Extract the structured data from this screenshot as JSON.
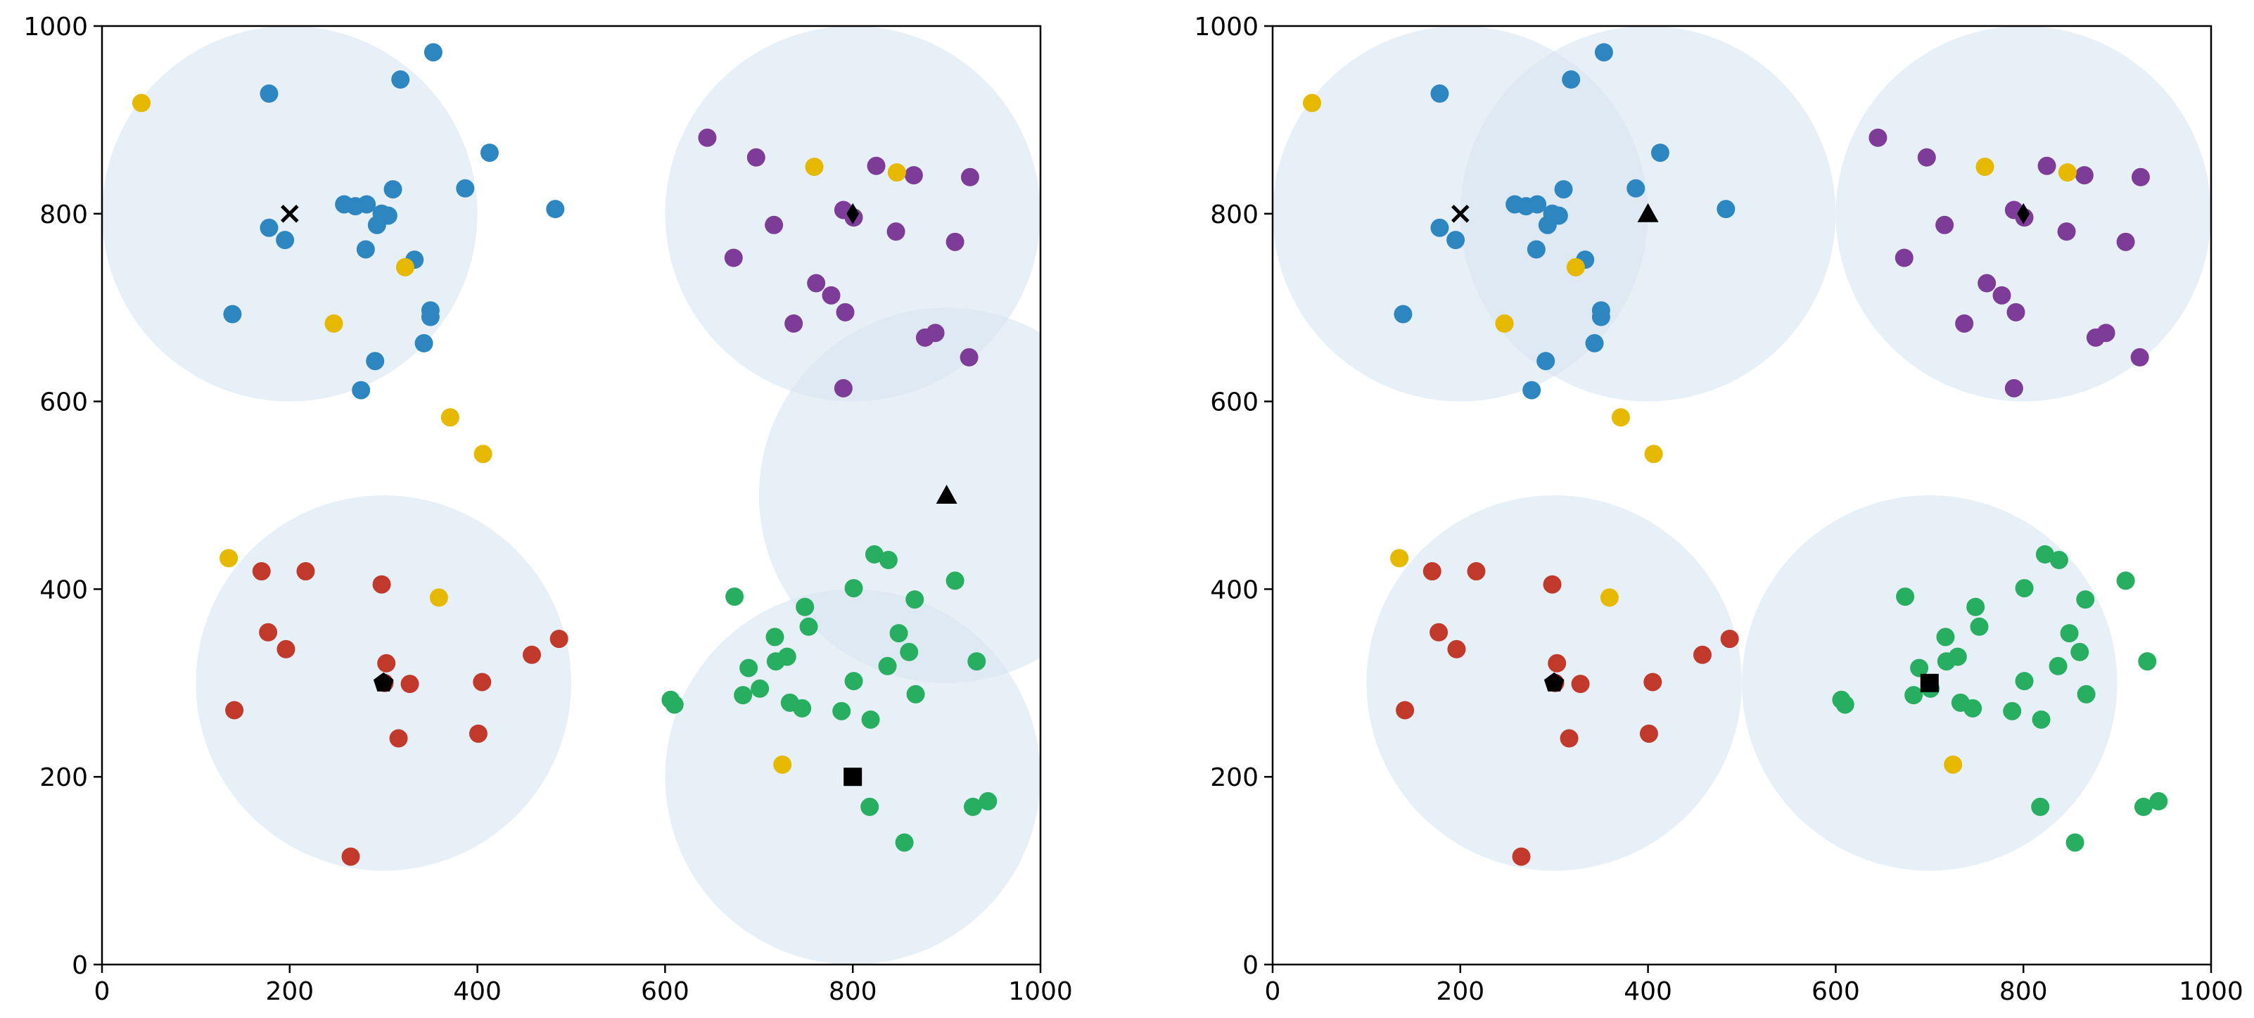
{
  "chart_data": [
    {
      "type": "scatter",
      "title": "",
      "xlabel": "",
      "ylabel": "",
      "xlim": [
        0,
        1000
      ],
      "ylim": [
        0,
        1000
      ],
      "xticks": [
        "0",
        "200",
        "400",
        "600",
        "800",
        "1000"
      ],
      "yticks": [
        "0",
        "200",
        "400",
        "600",
        "800",
        "1000"
      ],
      "grid": false,
      "circle_radius": 200,
      "circles": [
        {
          "cx": 200,
          "cy": 800
        },
        {
          "cx": 800,
          "cy": 800
        },
        {
          "cx": 900,
          "cy": 500
        },
        {
          "cx": 300,
          "cy": 300
        },
        {
          "cx": 800,
          "cy": 200
        }
      ],
      "centers": [
        {
          "shape": "x",
          "x": 200,
          "y": 800
        },
        {
          "shape": "thin-diamond",
          "x": 800,
          "y": 800
        },
        {
          "shape": "triangle",
          "x": 900,
          "y": 500
        },
        {
          "shape": "pentagon",
          "x": 300,
          "y": 300
        },
        {
          "shape": "square",
          "x": 800,
          "y": 200
        }
      ]
    },
    {
      "type": "scatter",
      "title": "",
      "xlabel": "",
      "ylabel": "",
      "xlim": [
        0,
        1000
      ],
      "ylim": [
        0,
        1000
      ],
      "xticks": [
        "0",
        "200",
        "400",
        "600",
        "800",
        "1000"
      ],
      "yticks": [
        "0",
        "200",
        "400",
        "600",
        "800",
        "1000"
      ],
      "grid": false,
      "circle_radius": 200,
      "circles": [
        {
          "cx": 200,
          "cy": 800
        },
        {
          "cx": 400,
          "cy": 800
        },
        {
          "cx": 800,
          "cy": 800
        },
        {
          "cx": 300,
          "cy": 300
        },
        {
          "cx": 700,
          "cy": 300
        }
      ],
      "centers": [
        {
          "shape": "x",
          "x": 200,
          "y": 800
        },
        {
          "shape": "triangle",
          "x": 400,
          "y": 800
        },
        {
          "shape": "thin-diamond",
          "x": 800,
          "y": 800
        },
        {
          "shape": "pentagon",
          "x": 300,
          "y": 300
        },
        {
          "shape": "square",
          "x": 700,
          "y": 300
        }
      ]
    }
  ],
  "colors": {
    "blue": "#2e86c1",
    "purple": "#7d3c98",
    "red": "#c0392b",
    "green": "#27ae60",
    "yellow": "#e6b800",
    "circle_fill": "#d6e4f0",
    "marker": "#000000"
  },
  "points": {
    "blue": [
      [
        178,
        928
      ],
      [
        318,
        943
      ],
      [
        353,
        972
      ],
      [
        413,
        865
      ],
      [
        387,
        827
      ],
      [
        483,
        805
      ],
      [
        310,
        826
      ],
      [
        258,
        810
      ],
      [
        270,
        808
      ],
      [
        282,
        810
      ],
      [
        298,
        800
      ],
      [
        305,
        798
      ],
      [
        293,
        788
      ],
      [
        178,
        785
      ],
      [
        195,
        772
      ],
      [
        281,
        762
      ],
      [
        333,
        751
      ],
      [
        350,
        697
      ],
      [
        350,
        690
      ],
      [
        139,
        693
      ],
      [
        343,
        662
      ],
      [
        291,
        643
      ],
      [
        276,
        612
      ]
    ],
    "purple": [
      [
        645,
        881
      ],
      [
        697,
        860
      ],
      [
        825,
        851
      ],
      [
        865,
        841
      ],
      [
        925,
        839
      ],
      [
        790,
        804
      ],
      [
        801,
        796
      ],
      [
        846,
        781
      ],
      [
        716,
        788
      ],
      [
        909,
        770
      ],
      [
        673,
        753
      ],
      [
        761,
        726
      ],
      [
        777,
        713
      ],
      [
        792,
        695
      ],
      [
        737,
        683
      ],
      [
        877,
        668
      ],
      [
        888,
        673
      ],
      [
        924,
        647
      ],
      [
        790,
        614
      ]
    ],
    "red": [
      [
        170,
        419
      ],
      [
        217,
        419
      ],
      [
        298,
        405
      ],
      [
        177,
        354
      ],
      [
        196,
        336
      ],
      [
        487,
        347
      ],
      [
        458,
        330
      ],
      [
        303,
        321
      ],
      [
        301,
        300
      ],
      [
        328,
        299
      ],
      [
        405,
        301
      ],
      [
        141,
        271
      ],
      [
        401,
        246
      ],
      [
        316,
        241
      ],
      [
        265,
        115
      ]
    ],
    "green": [
      [
        823,
        437
      ],
      [
        838,
        431
      ],
      [
        909,
        409
      ],
      [
        674,
        392
      ],
      [
        801,
        401
      ],
      [
        866,
        389
      ],
      [
        749,
        381
      ],
      [
        753,
        360
      ],
      [
        717,
        349
      ],
      [
        849,
        353
      ],
      [
        730,
        328
      ],
      [
        860,
        333
      ],
      [
        718,
        323
      ],
      [
        837,
        318
      ],
      [
        689,
        316
      ],
      [
        932,
        323
      ],
      [
        801,
        302
      ],
      [
        701,
        294
      ],
      [
        683,
        287
      ],
      [
        867,
        288
      ],
      [
        733,
        279
      ],
      [
        746,
        273
      ],
      [
        788,
        270
      ],
      [
        819,
        261
      ],
      [
        606,
        282
      ],
      [
        610,
        277
      ],
      [
        928,
        168
      ],
      [
        944,
        174
      ],
      [
        818,
        168
      ],
      [
        855,
        130
      ]
    ],
    "yellow": [
      [
        42,
        918
      ],
      [
        759,
        850
      ],
      [
        847,
        844
      ],
      [
        323,
        743
      ],
      [
        247,
        683
      ],
      [
        371,
        583
      ],
      [
        406,
        544
      ],
      [
        135,
        433
      ],
      [
        359,
        391
      ],
      [
        725,
        213
      ]
    ]
  }
}
